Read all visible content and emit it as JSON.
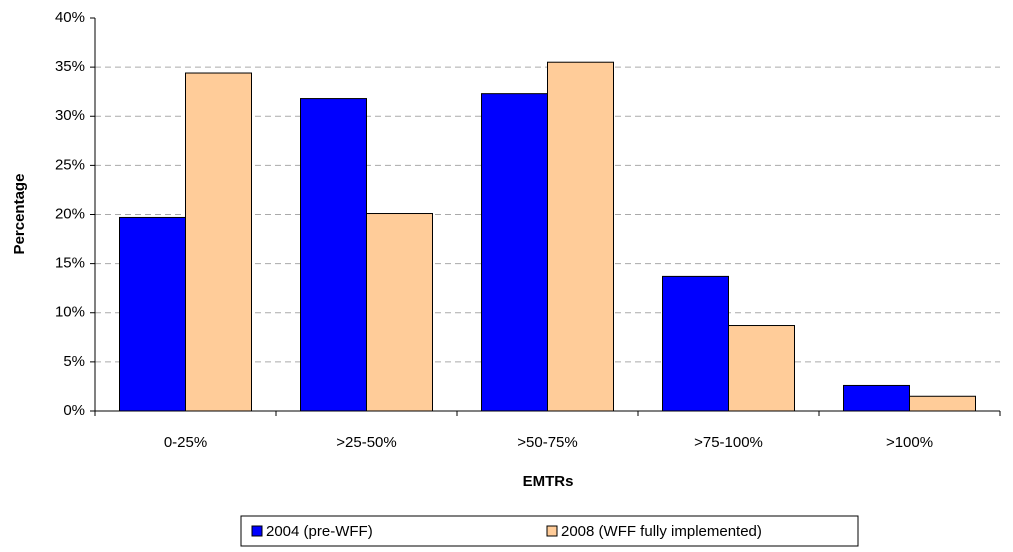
{
  "chart_data": {
    "type": "bar",
    "x_label": "EMTRs",
    "y_label": "Percentage",
    "categories": [
      "0-25%",
      ">25-50%",
      ">50-75%",
      ">75-100%",
      ">100%"
    ],
    "series": [
      {
        "name": "2004 (pre-WFF)",
        "color": "#0000ff",
        "values": [
          19.7,
          31.8,
          32.3,
          13.7,
          2.6
        ]
      },
      {
        "name": "2008 (WFF fully implemented)",
        "color": "#ffcc99",
        "values": [
          34.4,
          20.1,
          35.5,
          8.7,
          1.5
        ]
      }
    ],
    "ylim": [
      0,
      40
    ],
    "yticks": [
      {
        "value": 0,
        "label": "0%"
      },
      {
        "value": 5,
        "label": "5%"
      },
      {
        "value": 10,
        "label": "10%"
      },
      {
        "value": 15,
        "label": "15%"
      },
      {
        "value": 20,
        "label": "20%"
      },
      {
        "value": 25,
        "label": "25%"
      },
      {
        "value": 30,
        "label": "30%"
      },
      {
        "value": 35,
        "label": "35%"
      },
      {
        "value": 40,
        "label": "40%"
      }
    ],
    "grid": true,
    "legend": "bottom"
  }
}
